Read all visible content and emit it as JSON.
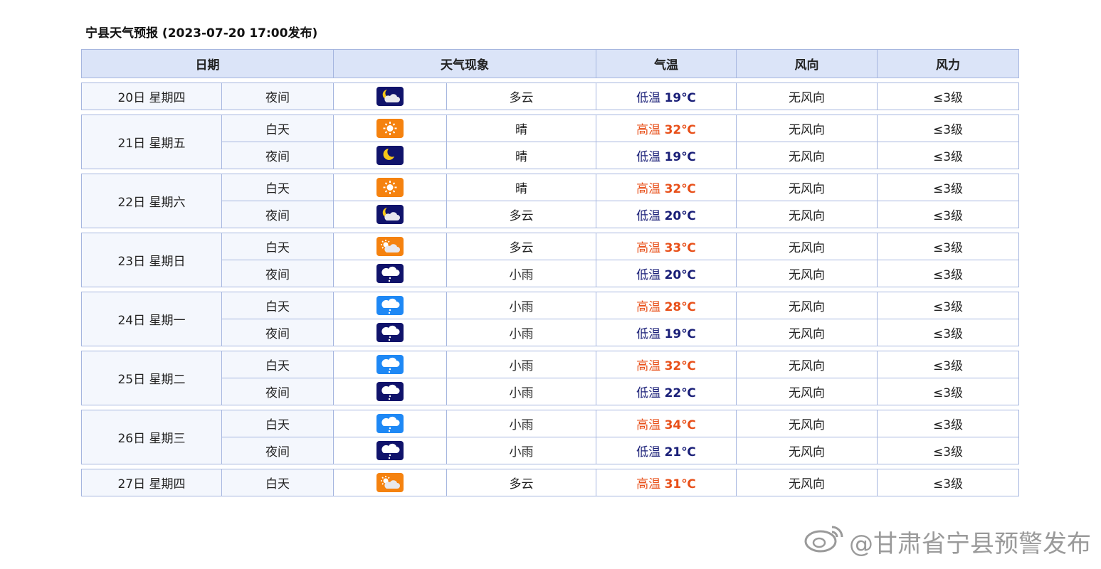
{
  "title": "宁县天气预报 (2023-07-20 17:00发布)",
  "headers": {
    "date": "日期",
    "weather": "天气现象",
    "temp": "气温",
    "wind_dir": "风向",
    "wind_force": "风力"
  },
  "colors": {
    "high": "#e8501a",
    "low": "#1a1f78",
    "day_icon": "#f5820f",
    "night_icon": "#10136b",
    "rain_day_icon": "#1e88f5",
    "header_bg": "#dbe4f8",
    "border": "#a6b6df"
  },
  "days": [
    {
      "date": "20日 星期四",
      "rows": [
        {
          "period": "夜间",
          "icon": "night-partly-cloudy",
          "weather": "多云",
          "temp_label": "低温",
          "temp_value": "19℃",
          "kind": "low",
          "wind_dir": "无风向",
          "wind_force": "≤3级"
        }
      ]
    },
    {
      "date": "21日 星期五",
      "rows": [
        {
          "period": "白天",
          "icon": "sunny",
          "weather": "晴",
          "temp_label": "高温",
          "temp_value": "32℃",
          "kind": "high",
          "wind_dir": "无风向",
          "wind_force": "≤3级"
        },
        {
          "period": "夜间",
          "icon": "night-clear",
          "weather": "晴",
          "temp_label": "低温",
          "temp_value": "19℃",
          "kind": "low",
          "wind_dir": "无风向",
          "wind_force": "≤3级"
        }
      ]
    },
    {
      "date": "22日 星期六",
      "rows": [
        {
          "period": "白天",
          "icon": "sunny",
          "weather": "晴",
          "temp_label": "高温",
          "temp_value": "32℃",
          "kind": "high",
          "wind_dir": "无风向",
          "wind_force": "≤3级"
        },
        {
          "period": "夜间",
          "icon": "night-partly-cloudy",
          "weather": "多云",
          "temp_label": "低温",
          "temp_value": "20℃",
          "kind": "low",
          "wind_dir": "无风向",
          "wind_force": "≤3级"
        }
      ]
    },
    {
      "date": "23日 星期日",
      "rows": [
        {
          "period": "白天",
          "icon": "day-partly-cloudy",
          "weather": "多云",
          "temp_label": "高温",
          "temp_value": "33℃",
          "kind": "high",
          "wind_dir": "无风向",
          "wind_force": "≤3级"
        },
        {
          "period": "夜间",
          "icon": "night-light-rain",
          "weather": "小雨",
          "temp_label": "低温",
          "temp_value": "20℃",
          "kind": "low",
          "wind_dir": "无风向",
          "wind_force": "≤3级"
        }
      ]
    },
    {
      "date": "24日 星期一",
      "rows": [
        {
          "period": "白天",
          "icon": "day-light-rain",
          "weather": "小雨",
          "temp_label": "高温",
          "temp_value": "28℃",
          "kind": "high",
          "wind_dir": "无风向",
          "wind_force": "≤3级"
        },
        {
          "period": "夜间",
          "icon": "night-light-rain",
          "weather": "小雨",
          "temp_label": "低温",
          "temp_value": "19℃",
          "kind": "low",
          "wind_dir": "无风向",
          "wind_force": "≤3级"
        }
      ]
    },
    {
      "date": "25日 星期二",
      "rows": [
        {
          "period": "白天",
          "icon": "day-light-rain",
          "weather": "小雨",
          "temp_label": "高温",
          "temp_value": "32℃",
          "kind": "high",
          "wind_dir": "无风向",
          "wind_force": "≤3级"
        },
        {
          "period": "夜间",
          "icon": "night-light-rain",
          "weather": "小雨",
          "temp_label": "低温",
          "temp_value": "22℃",
          "kind": "low",
          "wind_dir": "无风向",
          "wind_force": "≤3级"
        }
      ]
    },
    {
      "date": "26日 星期三",
      "rows": [
        {
          "period": "白天",
          "icon": "day-light-rain",
          "weather": "小雨",
          "temp_label": "高温",
          "temp_value": "34℃",
          "kind": "high",
          "wind_dir": "无风向",
          "wind_force": "≤3级"
        },
        {
          "period": "夜间",
          "icon": "night-light-rain",
          "weather": "小雨",
          "temp_label": "低温",
          "temp_value": "21℃",
          "kind": "low",
          "wind_dir": "无风向",
          "wind_force": "≤3级"
        }
      ]
    },
    {
      "date": "27日 星期四",
      "rows": [
        {
          "period": "白天",
          "icon": "day-partly-cloudy",
          "weather": "多云",
          "temp_label": "高温",
          "temp_value": "31℃",
          "kind": "high",
          "wind_dir": "无风向",
          "wind_force": "≤3级"
        }
      ]
    }
  ],
  "watermark": "@甘肃省宁县预警发布"
}
